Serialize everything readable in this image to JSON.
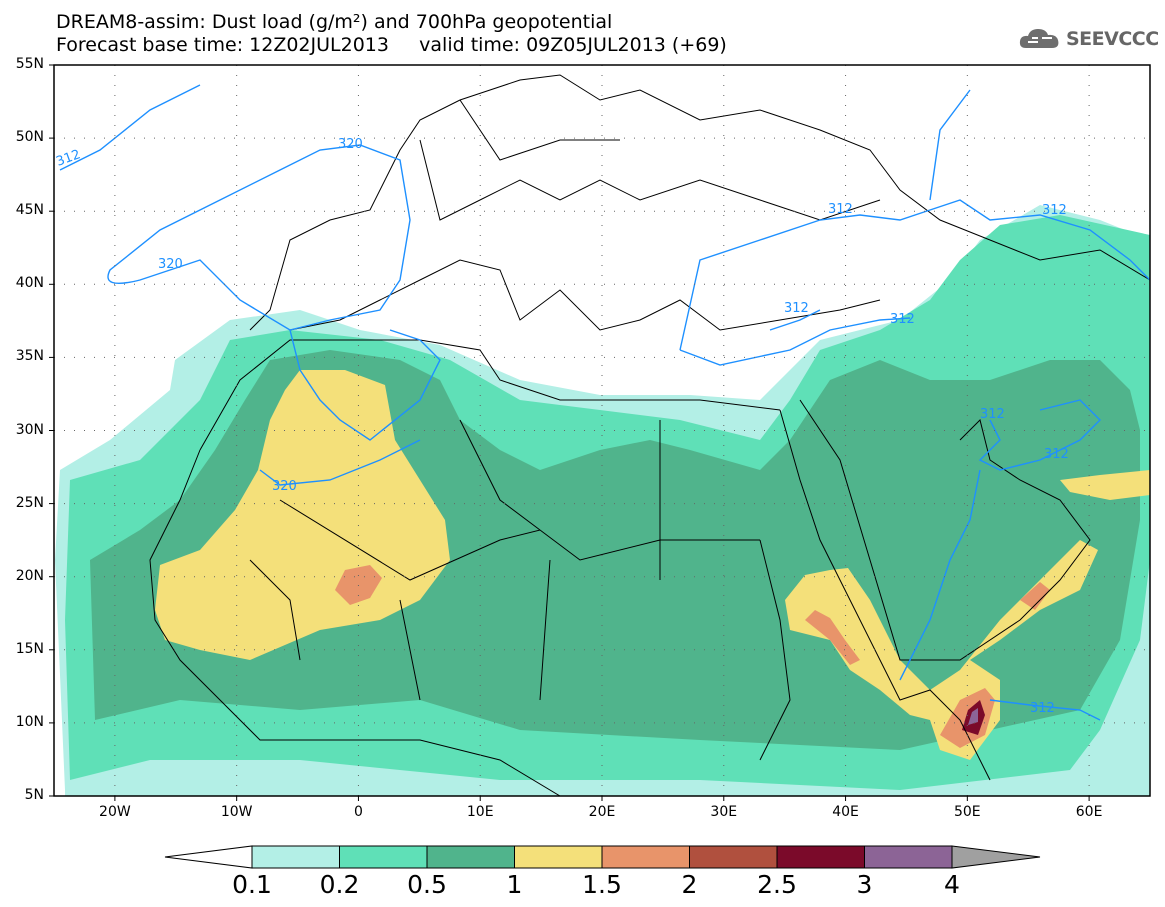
{
  "header": {
    "line1": "DREAM8-assim: Dust load (g/m²) and 700hPa geopotential",
    "line2": "Forecast base time: 12Z02JUL2013     valid time: 09Z05JUL2013 (+69)",
    "logo_text": "SEEVCCC",
    "logo_icon": "cloud-icon"
  },
  "map": {
    "lat_labels": [
      "55N",
      "50N",
      "45N",
      "40N",
      "35N",
      "30N",
      "25N",
      "20N",
      "15N",
      "10N",
      "5N"
    ],
    "lon_labels": [
      "20W",
      "10W",
      "0",
      "10E",
      "20E",
      "30E",
      "40E",
      "50E",
      "60E"
    ],
    "lon_range": [
      -25,
      65
    ],
    "lat_range": [
      5,
      55
    ],
    "contour_labels": [
      "312",
      "320",
      "320",
      "320",
      "312",
      "312",
      "312",
      "312",
      "312",
      "312",
      "312"
    ]
  },
  "colorbar": {
    "labels": [
      "0.1",
      "0.2",
      "0.5",
      "1",
      "1.5",
      "2",
      "2.5",
      "3",
      "4"
    ],
    "colors": [
      "#b3efe6",
      "#5fe0b7",
      "#50b48c",
      "#f4e07a",
      "#e8946a",
      "#b0503e",
      "#7b0a2a",
      "#8c6496",
      "#a0a0a0"
    ],
    "low_color": "#ffffff"
  }
}
